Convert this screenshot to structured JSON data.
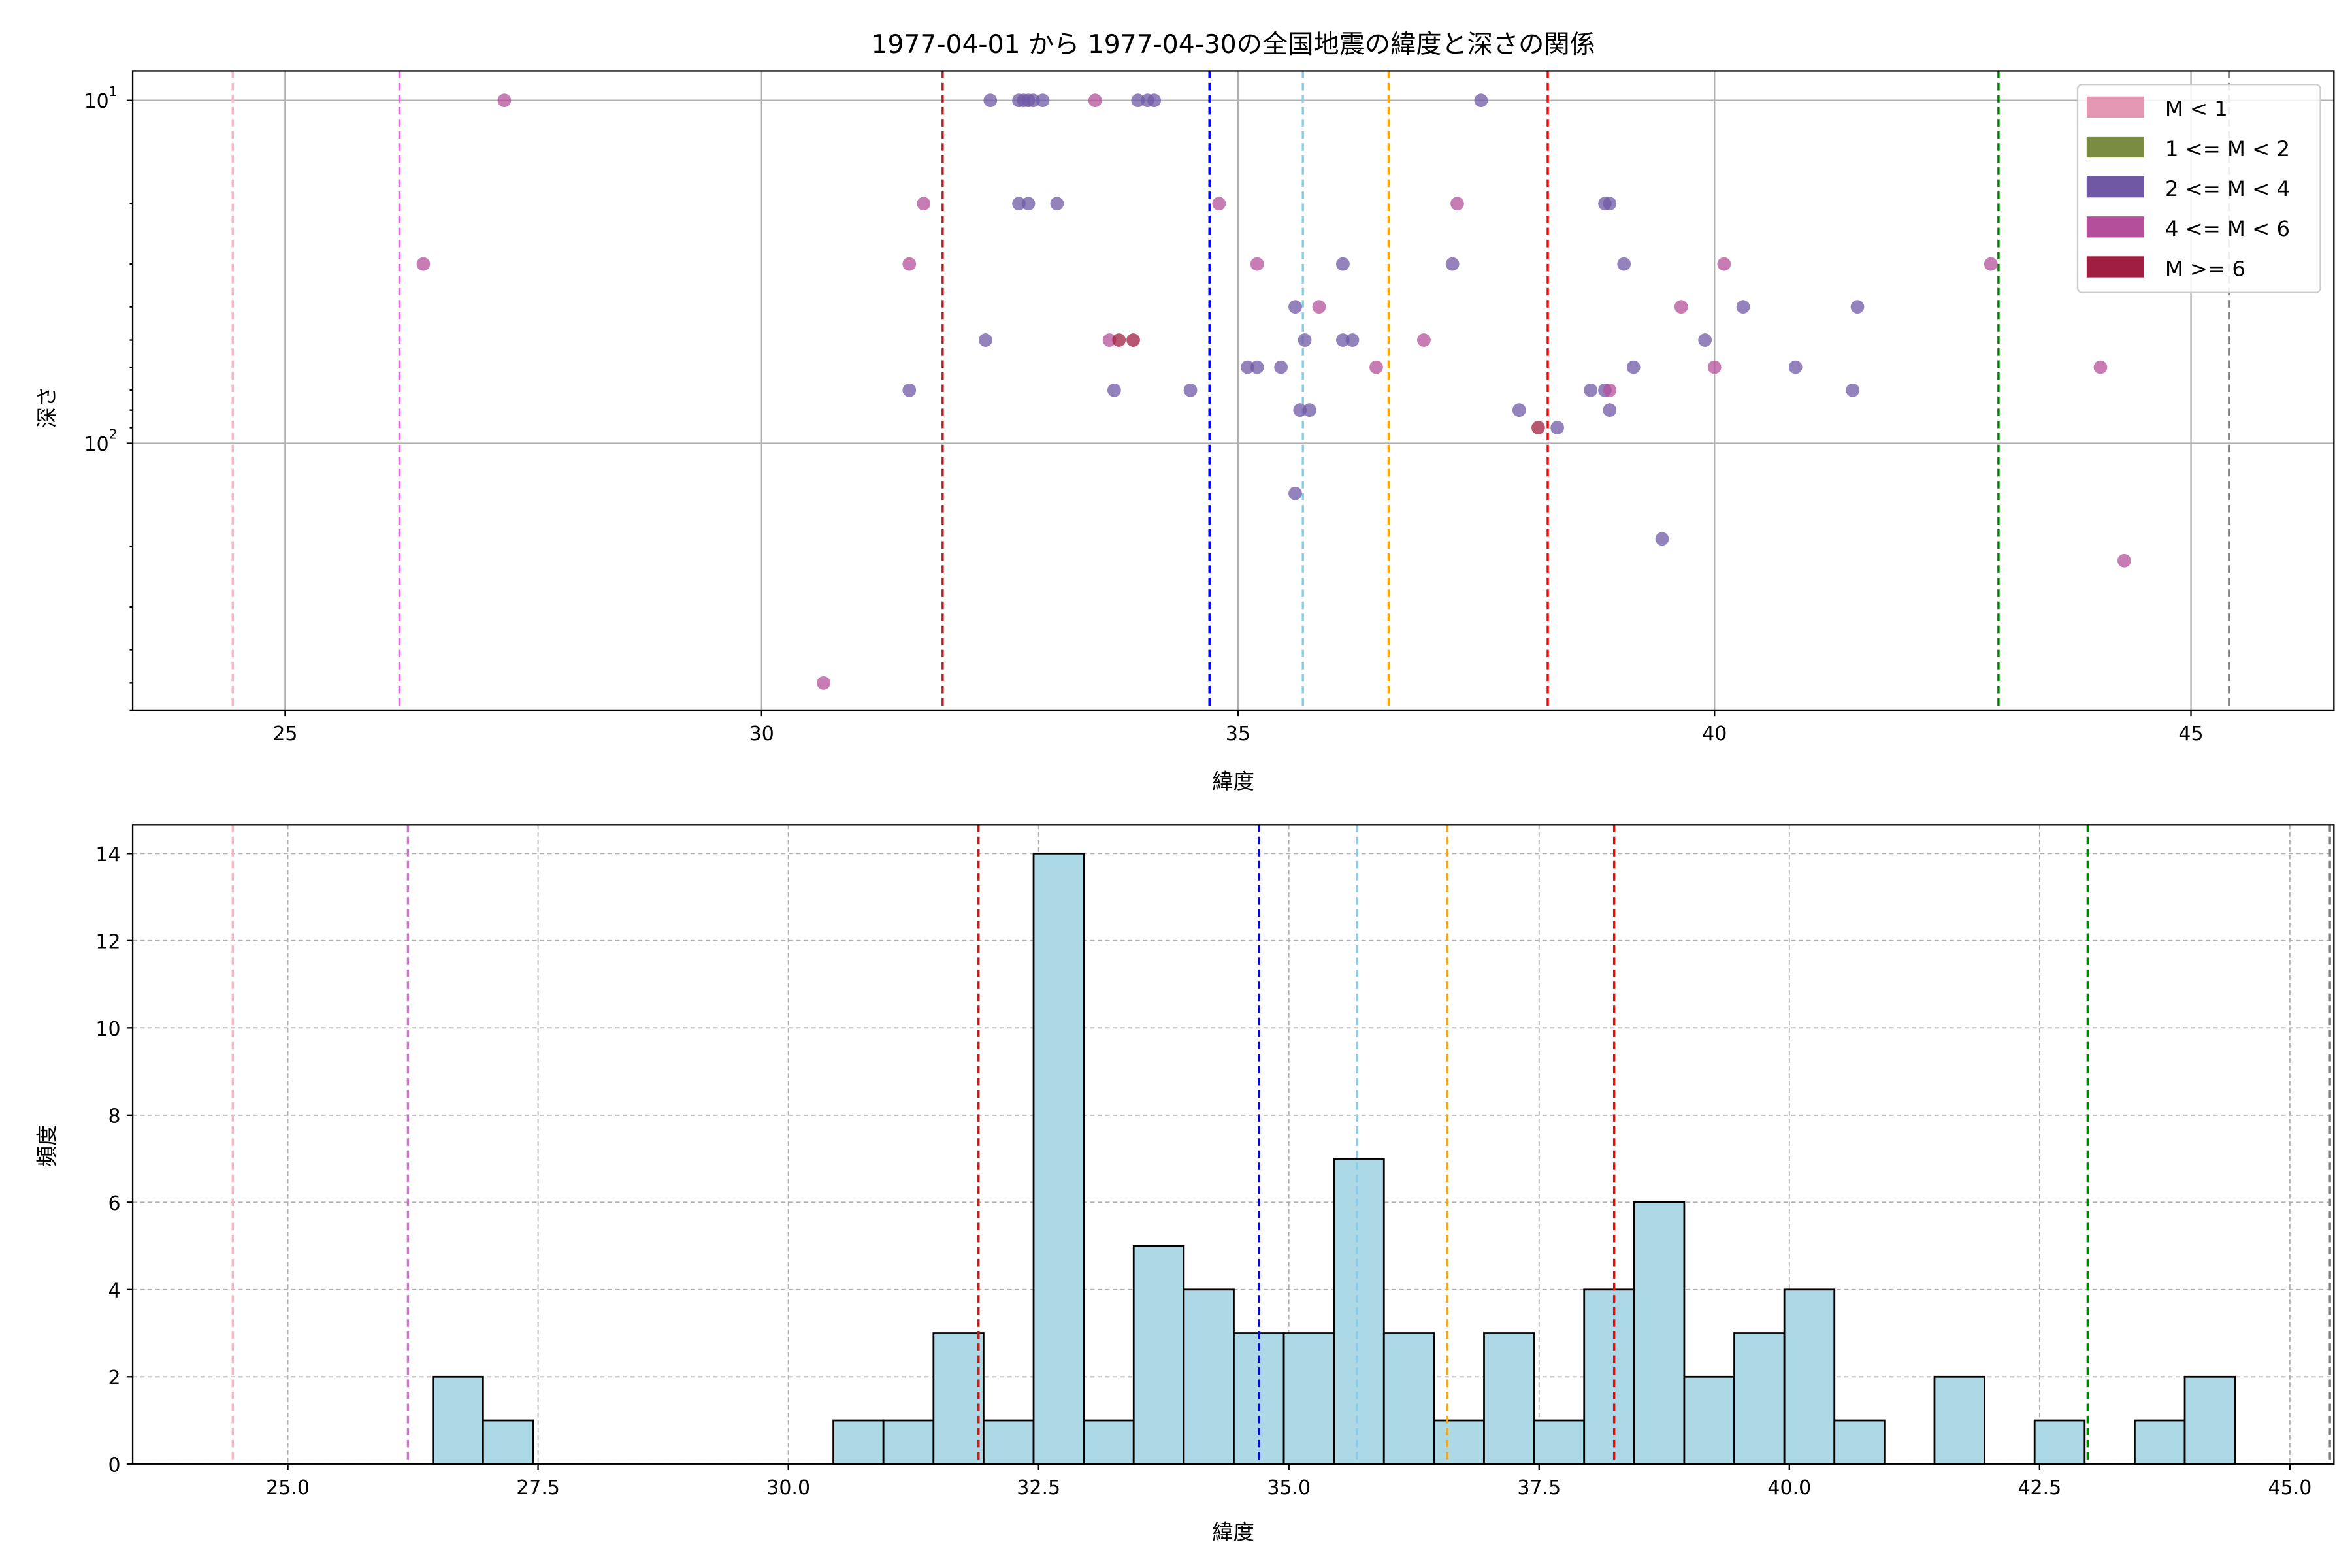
{
  "chart_data": [
    {
      "type": "scatter",
      "title": "1977-04-01 から 1977-04-30の全国地震の緯度と深さの関係",
      "xlabel": "緯度",
      "ylabel": "深さ",
      "xlim": [
        23.4,
        46.5
      ],
      "ylim": [
        600,
        8.2
      ],
      "yscale": "log",
      "y_inverted": true,
      "grid": true,
      "xticks": [
        25,
        30,
        35,
        40,
        45
      ],
      "xtick_labels": [
        "25",
        "30",
        "35",
        "40",
        "45"
      ],
      "yticks": [
        10,
        100
      ],
      "ytick_labels": [
        "10",
        "1",
        "10",
        "2"
      ],
      "legend_placement": "top-right",
      "legend": [
        {
          "label": "M < 1",
          "color": "#e397b3"
        },
        {
          "label": "1 <= M < 2",
          "color": "#7a8c42"
        },
        {
          "label": "2 <= M < 4",
          "color": "#7058a5"
        },
        {
          "label": "4 <= M < 6",
          "color": "#b4509b"
        },
        {
          "label": "M >= 6",
          "color": "#a01f40"
        }
      ],
      "points": [
        {
          "lat": 27.3,
          "depth": 10,
          "cls": 3
        },
        {
          "lat": 32.4,
          "depth": 10,
          "cls": 2
        },
        {
          "lat": 32.7,
          "depth": 10,
          "cls": 2
        },
        {
          "lat": 32.75,
          "depth": 10,
          "cls": 2
        },
        {
          "lat": 32.8,
          "depth": 10,
          "cls": 2
        },
        {
          "lat": 32.85,
          "depth": 10,
          "cls": 2
        },
        {
          "lat": 32.95,
          "depth": 10,
          "cls": 2
        },
        {
          "lat": 33.5,
          "depth": 10,
          "cls": 3
        },
        {
          "lat": 33.95,
          "depth": 10,
          "cls": 2
        },
        {
          "lat": 34.05,
          "depth": 10,
          "cls": 2
        },
        {
          "lat": 34.12,
          "depth": 10,
          "cls": 2
        },
        {
          "lat": 37.55,
          "depth": 10,
          "cls": 2
        },
        {
          "lat": 31.7,
          "depth": 20,
          "cls": 3
        },
        {
          "lat": 32.7,
          "depth": 20,
          "cls": 2
        },
        {
          "lat": 32.8,
          "depth": 20,
          "cls": 2
        },
        {
          "lat": 33.1,
          "depth": 20,
          "cls": 2
        },
        {
          "lat": 34.8,
          "depth": 20,
          "cls": 3
        },
        {
          "lat": 37.3,
          "depth": 20,
          "cls": 3
        },
        {
          "lat": 38.85,
          "depth": 20,
          "cls": 2
        },
        {
          "lat": 38.9,
          "depth": 20,
          "cls": 2
        },
        {
          "lat": 26.45,
          "depth": 30,
          "cls": 3
        },
        {
          "lat": 31.55,
          "depth": 30,
          "cls": 3
        },
        {
          "lat": 35.2,
          "depth": 30,
          "cls": 3
        },
        {
          "lat": 36.1,
          "depth": 30,
          "cls": 2
        },
        {
          "lat": 37.25,
          "depth": 30,
          "cls": 2
        },
        {
          "lat": 39.05,
          "depth": 30,
          "cls": 2
        },
        {
          "lat": 40.1,
          "depth": 30,
          "cls": 3
        },
        {
          "lat": 42.9,
          "depth": 30,
          "cls": 3
        },
        {
          "lat": 35.6,
          "depth": 40,
          "cls": 2
        },
        {
          "lat": 35.85,
          "depth": 40,
          "cls": 3
        },
        {
          "lat": 39.65,
          "depth": 40,
          "cls": 3
        },
        {
          "lat": 40.3,
          "depth": 40,
          "cls": 2
        },
        {
          "lat": 41.5,
          "depth": 40,
          "cls": 2
        },
        {
          "lat": 32.35,
          "depth": 50,
          "cls": 2
        },
        {
          "lat": 33.65,
          "depth": 50,
          "cls": 3
        },
        {
          "lat": 33.75,
          "depth": 50,
          "cls": 4
        },
        {
          "lat": 33.9,
          "depth": 50,
          "cls": 4
        },
        {
          "lat": 35.7,
          "depth": 50,
          "cls": 2
        },
        {
          "lat": 36.1,
          "depth": 50,
          "cls": 2
        },
        {
          "lat": 36.2,
          "depth": 50,
          "cls": 2
        },
        {
          "lat": 36.95,
          "depth": 50,
          "cls": 3
        },
        {
          "lat": 39.9,
          "depth": 50,
          "cls": 2
        },
        {
          "lat": 35.1,
          "depth": 60,
          "cls": 2
        },
        {
          "lat": 35.2,
          "depth": 60,
          "cls": 2
        },
        {
          "lat": 35.45,
          "depth": 60,
          "cls": 2
        },
        {
          "lat": 36.45,
          "depth": 60,
          "cls": 3
        },
        {
          "lat": 39.15,
          "depth": 60,
          "cls": 2
        },
        {
          "lat": 40.0,
          "depth": 60,
          "cls": 3
        },
        {
          "lat": 40.85,
          "depth": 60,
          "cls": 2
        },
        {
          "lat": 44.05,
          "depth": 60,
          "cls": 3
        },
        {
          "lat": 31.55,
          "depth": 70,
          "cls": 2
        },
        {
          "lat": 33.7,
          "depth": 70,
          "cls": 2
        },
        {
          "lat": 34.5,
          "depth": 70,
          "cls": 2
        },
        {
          "lat": 38.7,
          "depth": 70,
          "cls": 2
        },
        {
          "lat": 38.85,
          "depth": 70,
          "cls": 2
        },
        {
          "lat": 38.9,
          "depth": 70,
          "cls": 3
        },
        {
          "lat": 41.45,
          "depth": 70,
          "cls": 2
        },
        {
          "lat": 35.65,
          "depth": 80,
          "cls": 2
        },
        {
          "lat": 35.75,
          "depth": 80,
          "cls": 2
        },
        {
          "lat": 37.95,
          "depth": 80,
          "cls": 2
        },
        {
          "lat": 38.9,
          "depth": 80,
          "cls": 2
        },
        {
          "lat": 38.15,
          "depth": 90,
          "cls": 4
        },
        {
          "lat": 38.35,
          "depth": 90,
          "cls": 2
        },
        {
          "lat": 35.6,
          "depth": 140,
          "cls": 2
        },
        {
          "lat": 39.45,
          "depth": 190,
          "cls": 2
        },
        {
          "lat": 44.3,
          "depth": 220,
          "cls": 3
        },
        {
          "lat": 30.65,
          "depth": 500,
          "cls": 3
        }
      ],
      "vlines": [
        {
          "lat": 24.45,
          "color": "#ffb6c1"
        },
        {
          "lat": 26.2,
          "color": "#da70d6"
        },
        {
          "lat": 31.9,
          "color": "#b22222"
        },
        {
          "lat": 34.7,
          "color": "#0000ff"
        },
        {
          "lat": 35.68,
          "color": "#87ceeb"
        },
        {
          "lat": 36.58,
          "color": "#ffa500"
        },
        {
          "lat": 38.25,
          "color": "#ff0000"
        },
        {
          "lat": 42.98,
          "color": "#008000"
        },
        {
          "lat": 45.4,
          "color": "#808080"
        }
      ]
    },
    {
      "type": "bar",
      "subtype": "histogram",
      "xlabel": "緯度",
      "ylabel": "頻度",
      "xlim": [
        23.45,
        45.44
      ],
      "ylim": [
        0,
        14.66
      ],
      "grid": true,
      "xticks": [
        25,
        27.5,
        30,
        32.5,
        35,
        37.5,
        40,
        42.5,
        45
      ],
      "xtick_labels": [
        "25.0",
        "27.5",
        "30.0",
        "32.5",
        "35.0",
        "37.5",
        "40.0",
        "42.5",
        "45.0"
      ],
      "yticks": [
        0,
        2,
        4,
        6,
        8,
        10,
        12,
        14
      ],
      "ytick_labels": [
        "0",
        "2",
        "4",
        "6",
        "8",
        "10",
        "12",
        "14"
      ],
      "bar_color": "#add8e6",
      "bin_start": 26.45,
      "bin_width": 0.5,
      "counts": [
        2,
        1,
        0,
        0,
        0,
        0,
        0,
        0,
        1,
        1,
        3,
        1,
        14,
        1,
        5,
        4,
        3,
        3,
        7,
        3,
        1,
        3,
        1,
        4,
        6,
        2,
        3,
        4,
        1,
        0,
        2,
        0,
        1,
        0,
        1,
        2
      ],
      "vlines": [
        {
          "lat": 24.45,
          "color": "#ffb6c1"
        },
        {
          "lat": 26.2,
          "color": "#da70d6"
        },
        {
          "lat": 31.9,
          "color": "#b22222"
        },
        {
          "lat": 34.7,
          "color": "#0000ff"
        },
        {
          "lat": 35.68,
          "color": "#87ceeb"
        },
        {
          "lat": 36.58,
          "color": "#ffa500"
        },
        {
          "lat": 38.25,
          "color": "#ff0000"
        },
        {
          "lat": 42.98,
          "color": "#008000"
        },
        {
          "lat": 45.4,
          "color": "#808080"
        }
      ]
    }
  ]
}
